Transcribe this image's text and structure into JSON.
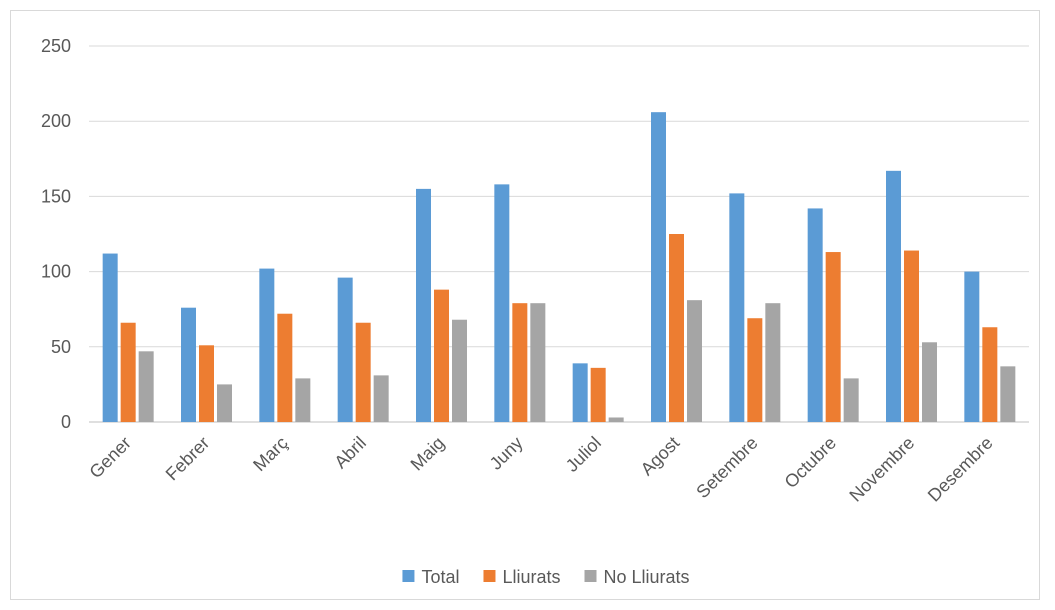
{
  "chart_data": {
    "type": "bar",
    "title": "",
    "xlabel": "",
    "ylabel": "",
    "ylim": [
      0,
      250
    ],
    "yticks": [
      0,
      50,
      100,
      150,
      200,
      250
    ],
    "grid": true,
    "legend_position": "bottom",
    "categories": [
      "Gener",
      "Febrer",
      "Març",
      "Abril",
      "Maig",
      "Juny",
      "Juliol",
      "Agost",
      "Setembre",
      "Octubre",
      "Novembre",
      "Desembre"
    ],
    "series": [
      {
        "name": "Total",
        "color": "#5b9bd5",
        "values": [
          112,
          76,
          102,
          96,
          155,
          158,
          39,
          206,
          152,
          142,
          167,
          100
        ]
      },
      {
        "name": "Lliurats",
        "color": "#ed7d31",
        "values": [
          66,
          51,
          72,
          66,
          88,
          79,
          36,
          125,
          69,
          113,
          114,
          63
        ]
      },
      {
        "name": "No Lliurats",
        "color": "#a5a5a5",
        "values": [
          47,
          25,
          29,
          31,
          68,
          79,
          3,
          81,
          79,
          29,
          53,
          37
        ]
      }
    ]
  }
}
